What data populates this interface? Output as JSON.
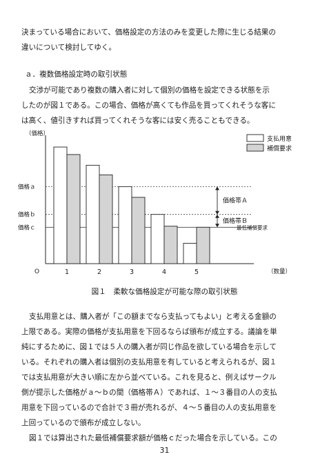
{
  "intro": {
    "lines": [
      "決まっている場合において、価格設定の方法のみを変更した際に生じる結果の",
      "違いについて検討してゆく。"
    ]
  },
  "section": {
    "heading": "ａ．複数価格設定時の取引状態",
    "lines": [
      "交渉が可能であり複数の購入者に対して個別の価格を設定できる状態を示",
      "したのが図１である。この場合、価格が高くても作品を買ってくれそうな客に",
      "は高く、値引きすれば買ってくれそうな客には安く売ることもできる。"
    ]
  },
  "chart_data": {
    "type": "bar",
    "categories": [
      "1",
      "2",
      "3",
      "4",
      "5"
    ],
    "series": [
      {
        "name": "支払用意",
        "values": [
          10.9,
          9.2,
          7.2,
          4.6,
          1.9
        ],
        "color": "#ffffff"
      },
      {
        "name": "補償要求",
        "values": [
          10.2,
          8.3,
          6.2,
          3.5,
          3.4
        ],
        "color": "#d4d4d4"
      }
    ],
    "ylabel": "（価格）",
    "xlabel": "（数量）",
    "origin_label": "O",
    "ylim": [
      0,
      12
    ],
    "price_levels": [
      {
        "label": "価格ａ",
        "value": 7.2,
        "style": "dashed"
      },
      {
        "label": "価格ｂ",
        "value": 4.6,
        "style": "dashed"
      },
      {
        "label": "価格ｃ",
        "value": 3.4,
        "style": "solid"
      }
    ],
    "bands": [
      {
        "label": "価格帯Ａ",
        "from": 4.6,
        "to": 7.2
      },
      {
        "label": "価格帯Ｂ",
        "from": 3.4,
        "to": 4.6
      }
    ],
    "min_line_label": "最低補償要求",
    "legend_position": "top-right",
    "grid": false
  },
  "figure": {
    "caption": "図１　柔軟な価格設定が可能な際の取引状態"
  },
  "body": {
    "lines": [
      "支払用意とは、購入者が「この額までなら支払ってもよい」と考える金額の",
      "上限である。実際の価格が支払用意を下回るならば頒布が成立する。議論を単",
      "純にするために、図１では５人の購入者が同じ作品を欲している場合を示して",
      "いる。それぞれの購入者は個別の支払用意を有していると考えられるが、図１",
      "では支払用意が大きい順に左から並べている。これを見ると、例えばサークル",
      "側が提示した価格がａ～ｂの間（価格帯Ａ）であれば、１～３番目の人の支払",
      "用意を下回っているので合計で３冊が売れるが、４～５番目の人の支払用意を",
      "上回っているので頒布が成立しない。",
      "図１では算出された最低補償要求額が価格ｃだった場合を示している。この"
    ]
  },
  "page": {
    "number": "31"
  }
}
